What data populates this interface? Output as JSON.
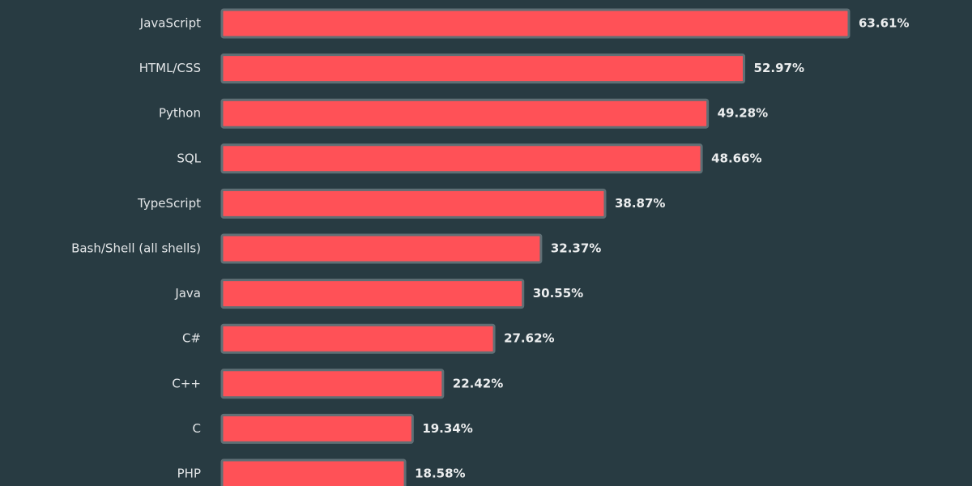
{
  "chart_data": {
    "type": "bar",
    "orientation": "horizontal",
    "categories": [
      "JavaScript",
      "HTML/CSS",
      "Python",
      "SQL",
      "TypeScript",
      "Bash/Shell (all shells)",
      "Java",
      "C#",
      "C++",
      "C",
      "PHP"
    ],
    "values": [
      63.61,
      52.97,
      49.28,
      48.66,
      38.87,
      32.37,
      30.55,
      27.62,
      22.42,
      19.34,
      18.58
    ],
    "value_labels": [
      "63.61%",
      "52.97%",
      "49.28%",
      "48.66%",
      "38.87%",
      "32.37%",
      "30.55%",
      "27.62%",
      "22.42%",
      "19.34%",
      "18.58%"
    ],
    "color": "#ff5157"
  }
}
